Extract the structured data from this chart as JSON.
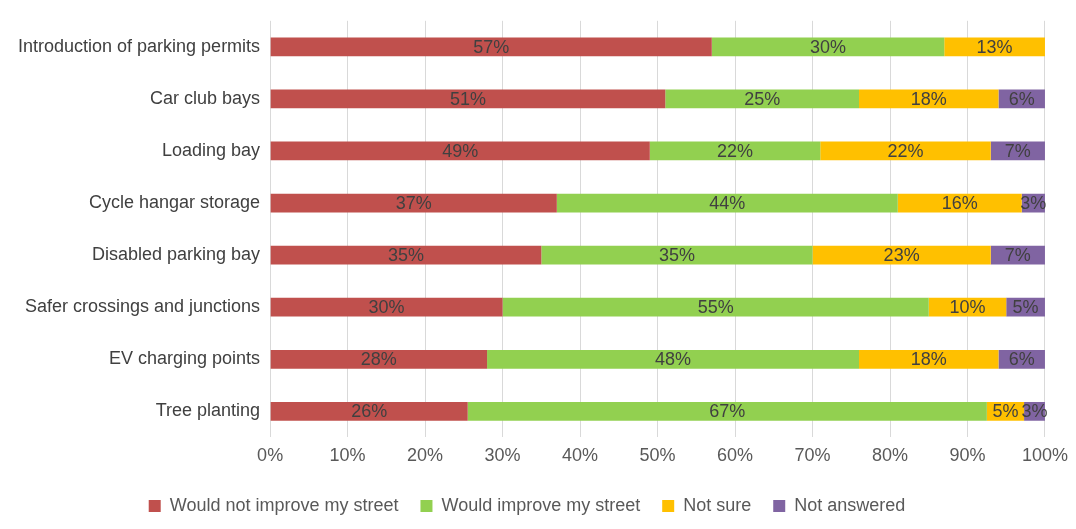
{
  "chart_data": {
    "type": "bar",
    "orientation": "horizontal",
    "stacked": true,
    "categories": [
      "Introduction of parking permits",
      "Car club bays",
      "Loading bay",
      "Cycle hangar storage",
      "Disabled parking bay",
      "Safer crossings and junctions",
      "EV charging points",
      "Tree planting"
    ],
    "series": [
      {
        "name": "Would not improve my street",
        "color": "#c0504d",
        "values": [
          57,
          51,
          49,
          37,
          35,
          30,
          28,
          25.5
        ],
        "value_labels": [
          "57%",
          "51%",
          "49%",
          "37%",
          "35%",
          "30%",
          "28%",
          "26%"
        ]
      },
      {
        "name": "Would improve my street",
        "color": "#92d050",
        "values": [
          30,
          25,
          22,
          44,
          35,
          55,
          48,
          67
        ],
        "value_labels": [
          "30%",
          "25%",
          "22%",
          "44%",
          "35%",
          "55%",
          "48%",
          "67%"
        ]
      },
      {
        "name": "Not sure",
        "color": "#ffc000",
        "values": [
          13,
          18,
          22,
          16,
          23,
          10,
          18,
          4.8
        ],
        "value_labels": [
          "13%",
          "18%",
          "22%",
          "16%",
          "23%",
          "10%",
          "18%",
          "5%"
        ]
      },
      {
        "name": "Not answered",
        "color": "#8064a2",
        "values": [
          0,
          6,
          7,
          3,
          7,
          5,
          6,
          2.7
        ],
        "value_labels": [
          null,
          "6%",
          "7%",
          "3%",
          "7%",
          "5%",
          "6%",
          "3%"
        ]
      }
    ],
    "xlim": [
      0,
      100
    ],
    "xticks": [
      {
        "value": 0,
        "label": "0%"
      },
      {
        "value": 10,
        "label": "10%"
      },
      {
        "value": 20,
        "label": "20%"
      },
      {
        "value": 30,
        "label": "30%"
      },
      {
        "value": 40,
        "label": "40%"
      },
      {
        "value": 50,
        "label": "50%"
      },
      {
        "value": 60,
        "label": "60%"
      },
      {
        "value": 70,
        "label": "70%"
      },
      {
        "value": 80,
        "label": "80%"
      },
      {
        "value": 90,
        "label": "90%"
      },
      {
        "value": 100,
        "label": "100%"
      }
    ],
    "grid": "x",
    "legend": "bottom"
  }
}
